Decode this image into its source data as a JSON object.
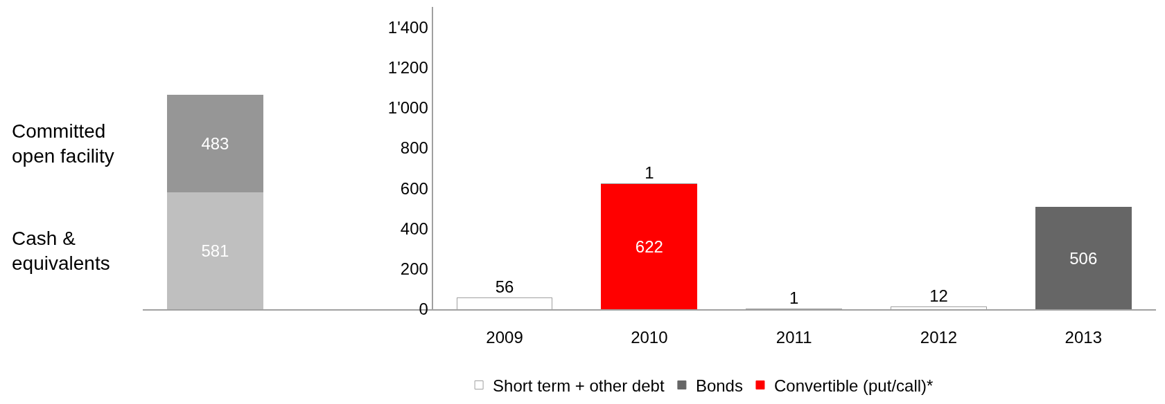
{
  "chart_data": {
    "type": "bar",
    "stacked": true,
    "data_labels": true,
    "categories": [
      null,
      null,
      "2009",
      "2010",
      "2011",
      "2012",
      "2013"
    ],
    "series": [
      {
        "name": "Cash &\nequivalents",
        "color": "#bfbfbf",
        "values": [
          581,
          null,
          null,
          null,
          null,
          null,
          null
        ]
      },
      {
        "name": "Committed\nopen facility",
        "color": "#969696",
        "values": [
          483,
          null,
          null,
          null,
          null,
          null,
          null
        ]
      },
      {
        "name": "Convertible (put/call)*",
        "color": "#ff0000",
        "values": [
          null,
          null,
          null,
          622,
          null,
          null,
          null
        ]
      },
      {
        "name": "Bonds",
        "color": "#666666",
        "values": [
          null,
          null,
          null,
          null,
          null,
          null,
          506
        ]
      },
      {
        "name": "Short term + other debt",
        "color": "#ffffff",
        "values": [
          null,
          null,
          56,
          1,
          1,
          12,
          null
        ]
      }
    ],
    "ylim": [
      0,
      1500
    ],
    "yticks": [
      0,
      200,
      400,
      600,
      800,
      {
        "value": 1000,
        "label": "1'000"
      },
      {
        "value": 1200,
        "label": "1'200"
      },
      {
        "value": 1400,
        "label": "1'400"
      }
    ],
    "legend": "bottom"
  }
}
